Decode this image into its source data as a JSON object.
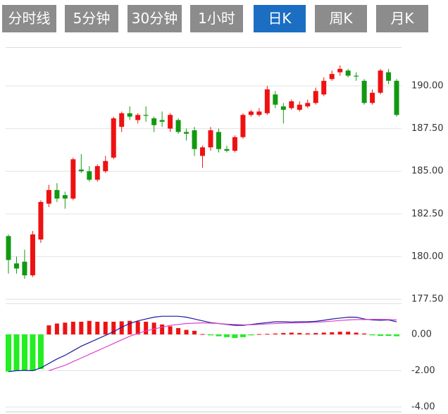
{
  "tabs": [
    "分时线",
    "5分钟",
    "30分钟",
    "1小时",
    "日K",
    "周K",
    "月K"
  ],
  "active_tab": 4,
  "chart_data": [
    {
      "type": "candlestick",
      "up_color": "#ee1111",
      "down_color": "#119911",
      "ylim": [
        177.5,
        192.25
      ],
      "yticks": [
        {
          "value": 177.5,
          "label": "177.50"
        },
        {
          "value": 180,
          "label": "180.00"
        },
        {
          "value": 182.5,
          "label": "182.50"
        },
        {
          "value": 185,
          "label": "185.00"
        },
        {
          "value": 187.5,
          "label": "187.50"
        },
        {
          "value": 190,
          "label": "190.00"
        }
      ],
      "grid": true,
      "open": [
        181.2,
        179.6,
        179.7,
        178.9,
        181.0,
        183.1,
        183.9,
        183.6,
        183.4,
        185.1,
        185.0,
        184.5,
        185.0,
        185.8,
        187.6,
        188.4,
        188.0,
        188.3,
        188.1,
        188.0,
        187.5,
        188.0,
        187.3,
        187.4,
        185.9,
        186.4,
        187.3,
        186.3,
        186.2,
        187.0,
        188.3,
        188.3,
        188.4,
        189.5,
        188.8,
        188.7,
        188.6,
        188.8,
        189.0,
        189.5,
        190.4,
        190.8,
        190.9,
        190.6,
        190.3,
        189.0,
        189.6,
        190.8,
        190.3
      ],
      "close": [
        179.8,
        179.3,
        178.9,
        181.3,
        183.2,
        183.9,
        183.4,
        183.4,
        185.7,
        185.0,
        184.5,
        185.3,
        185.6,
        188.1,
        188.4,
        188.2,
        188.3,
        188.25,
        187.7,
        187.9,
        188.3,
        187.3,
        187.2,
        186.3,
        186.4,
        187.4,
        186.3,
        186.2,
        187.0,
        188.3,
        188.5,
        188.5,
        189.8,
        188.9,
        188.6,
        189.1,
        188.9,
        189.0,
        189.7,
        190.3,
        190.7,
        191.0,
        190.6,
        190.55,
        189.0,
        189.6,
        190.9,
        190.3,
        188.3
      ],
      "high": [
        181.3,
        180.0,
        180.4,
        181.5,
        183.3,
        184.2,
        184.3,
        183.8,
        185.8,
        186.0,
        185.3,
        185.4,
        185.9,
        188.2,
        188.5,
        188.8,
        188.4,
        188.8,
        188.2,
        188.5,
        188.4,
        188.1,
        187.5,
        187.6,
        186.5,
        187.6,
        187.5,
        186.5,
        187.1,
        188.4,
        188.6,
        188.7,
        190.0,
        189.7,
        189.0,
        189.2,
        189.1,
        189.2,
        189.9,
        190.5,
        190.9,
        191.2,
        191.0,
        190.8,
        190.4,
        189.8,
        191.0,
        191.0,
        190.4
      ],
      "low": [
        179.0,
        179.0,
        178.7,
        178.8,
        180.8,
        182.9,
        183.2,
        182.8,
        183.3,
        184.9,
        184.4,
        184.4,
        184.9,
        185.7,
        187.3,
        188.0,
        187.8,
        187.9,
        187.3,
        187.6,
        187.3,
        187.2,
        186.8,
        185.9,
        185.2,
        186.2,
        186.1,
        186.1,
        186.1,
        186.9,
        188.2,
        188.2,
        188.3,
        188.7,
        187.8,
        188.6,
        188.5,
        188.7,
        188.9,
        189.4,
        190.3,
        190.6,
        190.5,
        190.3,
        188.9,
        188.9,
        189.5,
        190.1,
        188.2
      ]
    },
    {
      "type": "macd",
      "up_color": "#ee1111",
      "down_color": "#22ee22",
      "dif_color": "#1a1aa0",
      "dea_color": "#e040d0",
      "ylim": [
        -4,
        1.7
      ],
      "yticks": [
        {
          "value": -4,
          "label": "-4.00"
        },
        {
          "value": -2,
          "label": "-2.00"
        },
        {
          "value": 0,
          "label": "0.00"
        }
      ],
      "histogram": [
        -2.05,
        -2.0,
        -1.98,
        -2.0,
        -1.9,
        0.5,
        0.6,
        0.65,
        0.7,
        0.7,
        0.75,
        0.7,
        0.7,
        0.7,
        0.72,
        0.75,
        0.72,
        0.7,
        0.65,
        0.55,
        0.45,
        0.35,
        0.25,
        0.2,
        0.02,
        -0.05,
        -0.1,
        -0.15,
        -0.2,
        -0.15,
        -0.05,
        0.02,
        0.03,
        0.05,
        0.08,
        0.1,
        0.08,
        0.06,
        0.08,
        0.1,
        0.12,
        0.15,
        0.15,
        0.1,
        0.05,
        -0.05,
        -0.08,
        -0.08,
        -0.1
      ],
      "dif": [
        -2.05,
        -2.0,
        -1.98,
        -2.0,
        -1.85,
        -1.6,
        -1.35,
        -1.15,
        -0.9,
        -0.65,
        -0.45,
        -0.25,
        -0.05,
        0.15,
        0.4,
        0.6,
        0.75,
        0.85,
        0.95,
        1.0,
        1.0,
        1.0,
        0.95,
        0.85,
        0.75,
        0.65,
        0.6,
        0.55,
        0.5,
        0.5,
        0.55,
        0.6,
        0.65,
        0.7,
        0.7,
        0.68,
        0.7,
        0.7,
        0.72,
        0.78,
        0.85,
        0.9,
        0.95,
        0.95,
        0.85,
        0.8,
        0.78,
        0.8,
        0.7
      ],
      "dea": [
        null,
        null,
        null,
        null,
        null,
        -2.0,
        -1.85,
        -1.7,
        -1.5,
        -1.3,
        -1.1,
        -0.9,
        -0.7,
        -0.5,
        -0.3,
        -0.1,
        0.05,
        0.2,
        0.3,
        0.4,
        0.5,
        0.55,
        0.6,
        0.62,
        0.64,
        0.62,
        0.6,
        0.57,
        0.55,
        0.53,
        0.53,
        0.55,
        0.58,
        0.6,
        0.62,
        0.63,
        0.64,
        0.65,
        0.67,
        0.7,
        0.73,
        0.77,
        0.8,
        0.82,
        0.82,
        0.83,
        0.83,
        0.82,
        0.8
      ]
    }
  ]
}
